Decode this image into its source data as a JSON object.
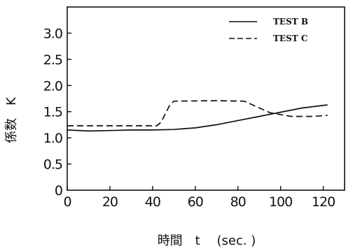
{
  "chart_data": {
    "type": "line",
    "title": "",
    "xlabel": "時間　t　 (sec. )",
    "ylabel": "係数　K",
    "xlim": [
      0,
      130
    ],
    "ylim": [
      0,
      3.5
    ],
    "xticks": [
      0,
      20,
      40,
      60,
      80,
      100,
      120
    ],
    "yticks": [
      0,
      0.5,
      1.0,
      1.5,
      2.0,
      2.5,
      3.0
    ],
    "x_tick_labels": [
      "0",
      "20",
      "40",
      "60",
      "80",
      "100",
      "120"
    ],
    "y_tick_labels": [
      "0",
      "0.5",
      "1.0",
      "1.5",
      "2.0",
      "2.5",
      "3.0"
    ],
    "grid": false,
    "legend_position": "top-right",
    "series": [
      {
        "name": "TEST B",
        "style": "solid",
        "x": [
          0,
          10,
          20,
          30,
          40,
          50,
          60,
          70,
          80,
          90,
          100,
          110,
          122
        ],
        "y": [
          1.15,
          1.13,
          1.14,
          1.15,
          1.15,
          1.16,
          1.19,
          1.25,
          1.33,
          1.41,
          1.49,
          1.57,
          1.63
        ]
      },
      {
        "name": "TEST C",
        "style": "dashed",
        "x": [
          0,
          10,
          20,
          30,
          42,
          44,
          48,
          50,
          70,
          83,
          95,
          105,
          115,
          122
        ],
        "y": [
          1.23,
          1.23,
          1.23,
          1.23,
          1.23,
          1.3,
          1.62,
          1.7,
          1.71,
          1.7,
          1.48,
          1.41,
          1.41,
          1.43
        ]
      }
    ]
  }
}
